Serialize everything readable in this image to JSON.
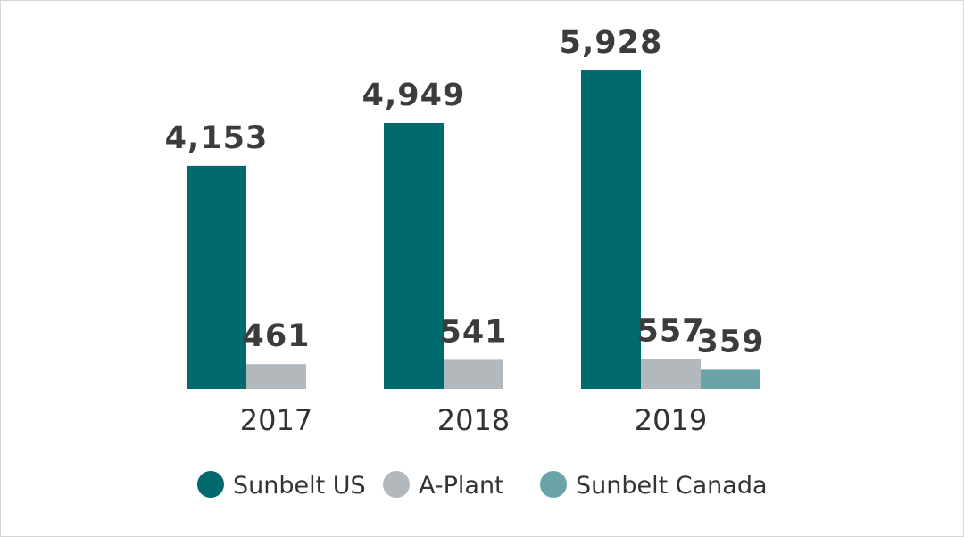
{
  "chart_data": {
    "type": "bar",
    "title": "",
    "xlabel": "",
    "ylabel": "",
    "categories": [
      "2017",
      "2018",
      "2019"
    ],
    "ylim": [
      0,
      6000
    ],
    "grid": false,
    "legend_position": "bottom",
    "series": [
      {
        "name": "Sunbelt US",
        "color": "#006a6e",
        "values": [
          4153,
          4949,
          5928
        ],
        "labels": [
          "4,153",
          "4,949",
          "5,928"
        ]
      },
      {
        "name": "A-Plant",
        "color": "#b3b8bd",
        "values": [
          461,
          541,
          557
        ],
        "labels": [
          "461",
          "541",
          "557"
        ]
      },
      {
        "name": "Sunbelt Canada",
        "color": "#6aa3a8",
        "values": [
          null,
          null,
          359
        ],
        "labels": [
          null,
          null,
          "359"
        ]
      }
    ]
  }
}
